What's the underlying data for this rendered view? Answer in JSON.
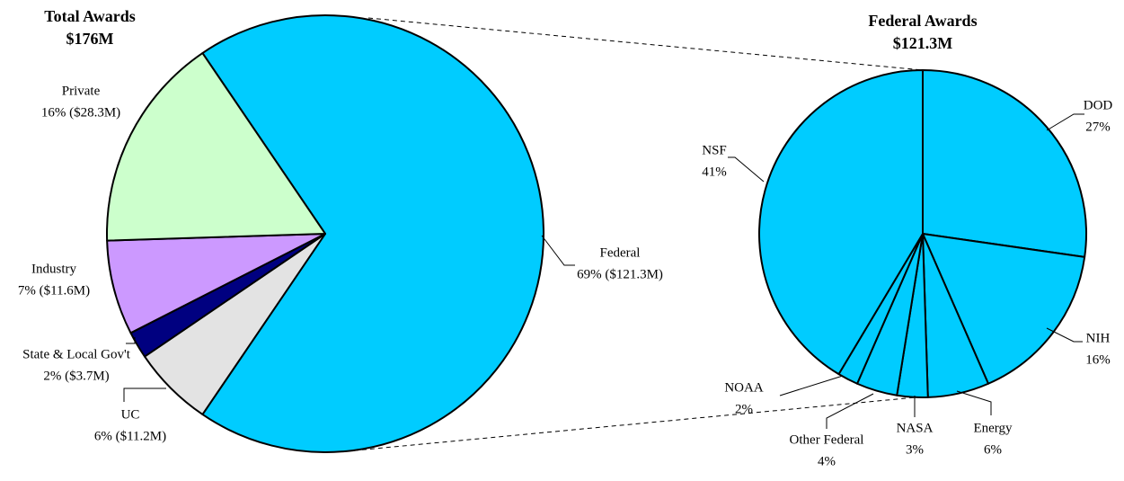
{
  "chart_data": [
    {
      "type": "pie",
      "title": "Total Awards",
      "subtitle": "$176M",
      "categories": [
        "Federal",
        "UC",
        "State & Local Gov't",
        "Industry",
        "Private"
      ],
      "values": [
        69,
        6,
        2,
        7,
        16
      ],
      "value_labels": [
        "69% ($121.3M)",
        "6% ($11.2M)",
        "2% ($3.7M)",
        "7% ($11.6M)",
        "16% ($28.3M)"
      ],
      "colors": [
        "#00ccff",
        "#e3e3e3",
        "#000080",
        "#cc99ff",
        "#ccffcc"
      ]
    },
    {
      "type": "pie",
      "title": "Federal Awards",
      "subtitle": "$121.3M",
      "categories": [
        "DOD",
        "NIH",
        "Energy",
        "NASA",
        "Other Federal",
        "NOAA",
        "NSF"
      ],
      "values": [
        27,
        16,
        6,
        3,
        4,
        2,
        41
      ],
      "value_labels": [
        "27%",
        "16%",
        "6%",
        "3%",
        "4%",
        "2%",
        "41%"
      ],
      "colors": [
        "#00ccff",
        "#00ccff",
        "#00ccff",
        "#00ccff",
        "#00ccff",
        "#00ccff",
        "#00ccff"
      ]
    }
  ]
}
